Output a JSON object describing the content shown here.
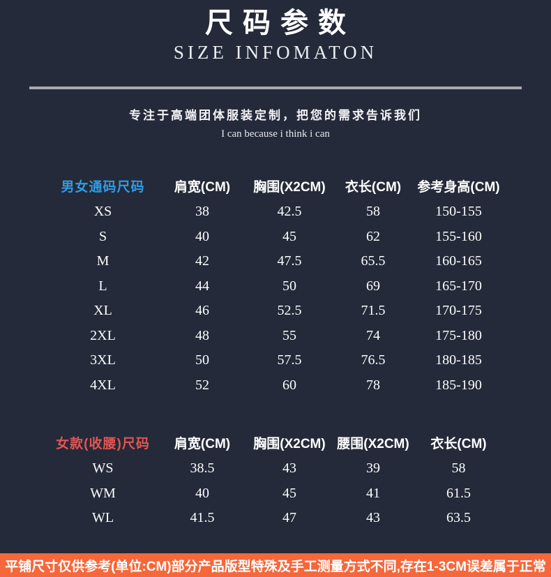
{
  "header": {
    "title_cn": "尺码参数",
    "title_en": "SIZE INFOMATON",
    "tagline": "专注于高端团体服装定制，把您的需求告诉我们",
    "slogan": "I can because i think i can"
  },
  "unisex_table": {
    "label": "男女通码尺码",
    "label_color": "#2e9ce4",
    "columns": [
      "肩宽(CM)",
      "胸围(X2CM)",
      "衣长(CM)",
      "参考身高(CM)"
    ],
    "rows": [
      {
        "size": "XS",
        "values": [
          "38",
          "42.5",
          "58",
          "150-155"
        ]
      },
      {
        "size": "S",
        "values": [
          "40",
          "45",
          "62",
          "155-160"
        ]
      },
      {
        "size": "M",
        "values": [
          "42",
          "47.5",
          "65.5",
          "160-165"
        ]
      },
      {
        "size": "L",
        "values": [
          "44",
          "50",
          "69",
          "165-170"
        ]
      },
      {
        "size": "XL",
        "values": [
          "46",
          "52.5",
          "71.5",
          "170-175"
        ]
      },
      {
        "size": "2XL",
        "values": [
          "48",
          "55",
          "74",
          "175-180"
        ]
      },
      {
        "size": "3XL",
        "values": [
          "50",
          "57.5",
          "76.5",
          "180-185"
        ]
      },
      {
        "size": "4XL",
        "values": [
          "52",
          "60",
          "78",
          "185-190"
        ]
      }
    ]
  },
  "women_table": {
    "label": "女款(收腰)尺码",
    "label_color": "#e25555",
    "columns": [
      "肩宽(CM)",
      "胸围(X2CM)",
      "腰围(X2CM)",
      "衣长(CM)"
    ],
    "rows": [
      {
        "size": "WS",
        "values": [
          "38.5",
          "43",
          "39",
          "58"
        ]
      },
      {
        "size": "WM",
        "values": [
          "40",
          "45",
          "41",
          "61.5"
        ]
      },
      {
        "size": "WL",
        "values": [
          "41.5",
          "47",
          "43",
          "63.5"
        ]
      }
    ]
  },
  "footer": {
    "note": "平铺尺寸仅供参考(单位:CM)部分产品版型特殊及手工测量方式不同,存在1-3CM误差属于正常",
    "bg_color": "#f4683c"
  },
  "colors": {
    "background": "#242a39",
    "divider": "#a9a9ad",
    "text": "#ffffff"
  }
}
